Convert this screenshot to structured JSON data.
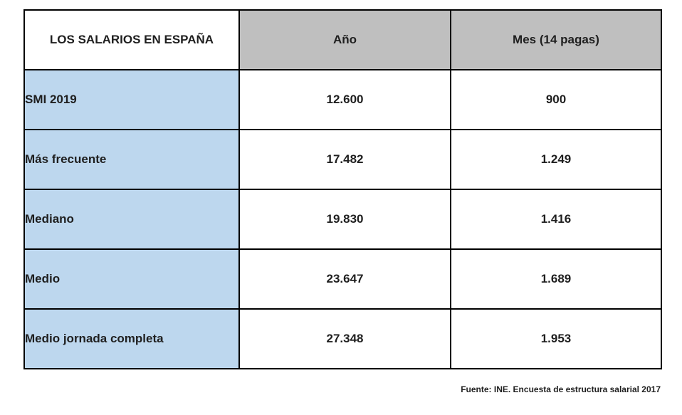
{
  "chart_data": {
    "type": "table",
    "title": "LOS SALARIOS EN ESPAÑA",
    "columns": [
      "LOS SALARIOS EN ESPAÑA",
      "Año",
      "Mes (14 pagas)"
    ],
    "rows": [
      {
        "label": "SMI 2019",
        "ano": "12.600",
        "mes": "900"
      },
      {
        "label": "Más frecuente",
        "ano": "17.482",
        "mes": "1.249"
      },
      {
        "label": "Mediano",
        "ano": "19.830",
        "mes": "1.416"
      },
      {
        "label": "Medio",
        "ano": "23.647",
        "mes": "1.689"
      },
      {
        "label": "Medio jornada completa",
        "ano": "27.348",
        "mes": "1.953"
      }
    ],
    "source": "Fuente: INE. Encuesta de estructura salarial 2017"
  },
  "colors": {
    "label_column_bg": "#bdd7ee",
    "header_bg": "#bfbfbf",
    "border": "#000000",
    "text": "#1f1f1f"
  }
}
